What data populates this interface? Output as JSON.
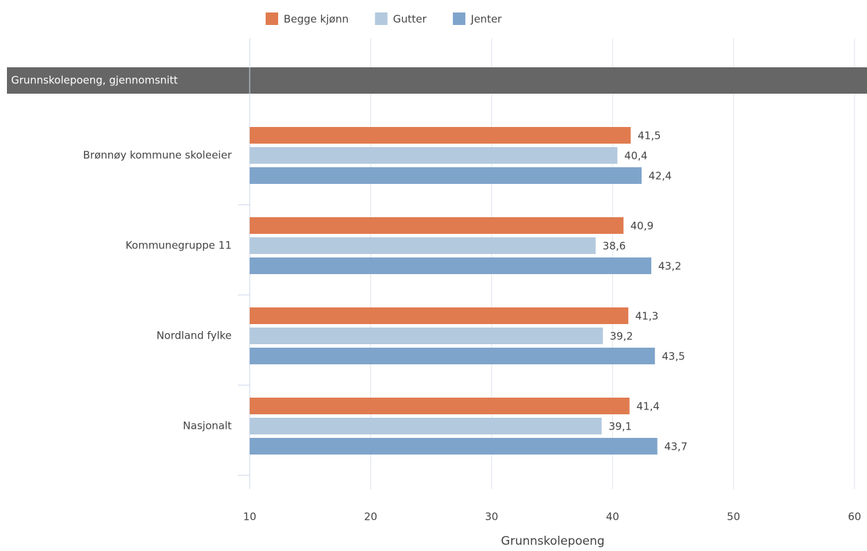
{
  "chart_data": {
    "type": "hbar",
    "section_label": "Grunnskolepoeng, gjennomsnitt",
    "x_label": "Grunnskolepoeng",
    "categories": [
      "Brønnøy kommune skoleeier",
      "Kommunegruppe 11",
      "Nordland fylke",
      "Nasjonalt"
    ],
    "series": [
      {
        "name": "Begge kjønn",
        "color": "#e07b4f",
        "values": [
          41.5,
          40.9,
          41.3,
          41.4
        ],
        "value_labels": [
          "41,5",
          "40,9",
          "41,3",
          "41,4"
        ]
      },
      {
        "name": "Gutter",
        "color": "#b3c9de",
        "values": [
          40.4,
          38.6,
          39.2,
          39.1
        ],
        "value_labels": [
          "40,4",
          "38,6",
          "39,2",
          "39,1"
        ]
      },
      {
        "name": "Jenter",
        "color": "#7fa4cb",
        "values": [
          42.4,
          43.2,
          43.5,
          43.7
        ],
        "value_labels": [
          "42,4",
          "43,2",
          "43,5",
          "43,7"
        ]
      }
    ],
    "xlim": [
      10,
      60
    ],
    "xticks": [
      10,
      20,
      30,
      40,
      50,
      60
    ],
    "grid": true,
    "legend": "top"
  }
}
